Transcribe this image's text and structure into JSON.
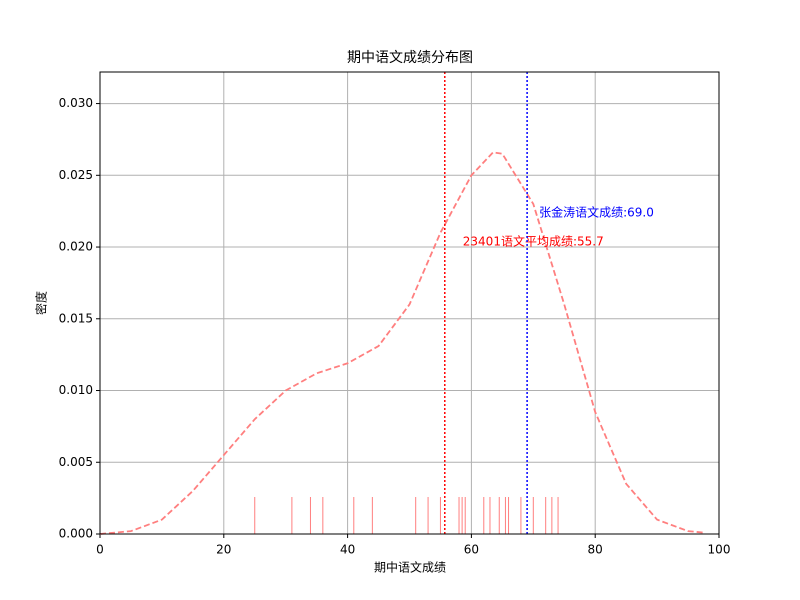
{
  "chart_data": {
    "type": "line",
    "title": "期中语文成绩分布图",
    "x_label": "期中语文成绩",
    "y_label": "密度",
    "xlim": [
      0,
      100
    ],
    "ylim": [
      0,
      0.0322
    ],
    "xticks": [
      0,
      20,
      40,
      60,
      80,
      100
    ],
    "yticks": [
      {
        "value": 0,
        "label": "0.000"
      },
      {
        "value": 0.005,
        "label": "0.005"
      },
      {
        "value": 0.01,
        "label": "0.010"
      },
      {
        "value": 0.015,
        "label": "0.015"
      },
      {
        "value": 0.02,
        "label": "0.020"
      },
      {
        "value": 0.025,
        "label": "0.025"
      },
      {
        "value": 0.03,
        "label": "0.030"
      }
    ],
    "grid": true,
    "x": [
      0,
      5,
      10,
      15,
      20,
      25,
      30,
      35,
      40,
      45,
      50,
      55,
      60,
      63.5,
      65,
      70,
      75,
      80,
      85,
      90,
      95,
      97.5
    ],
    "values": [
      0,
      0.0002,
      0.001,
      0.003,
      0.0055,
      0.008,
      0.01,
      0.0112,
      0.0119,
      0.0131,
      0.016,
      0.021,
      0.025,
      0.0266,
      0.0265,
      0.023,
      0.016,
      0.0085,
      0.0035,
      0.001,
      0.0002,
      0.0001
    ],
    "color": "#ff7f7f",
    "rug": {
      "values": [
        25,
        31,
        34,
        36,
        41,
        44,
        51,
        53,
        55,
        58,
        58.5,
        59,
        62,
        63,
        64.5,
        65.5,
        66,
        68,
        70,
        72,
        73,
        74
      ],
      "color": "#ff7f7f"
    },
    "vlines": [
      {
        "value": 55.7,
        "color": "#ff0000",
        "text": "23401语文平均成绩:55.7"
      },
      {
        "value": 69.0,
        "color": "#0000ff",
        "text": "张金涛语文成绩:69.0"
      }
    ]
  }
}
